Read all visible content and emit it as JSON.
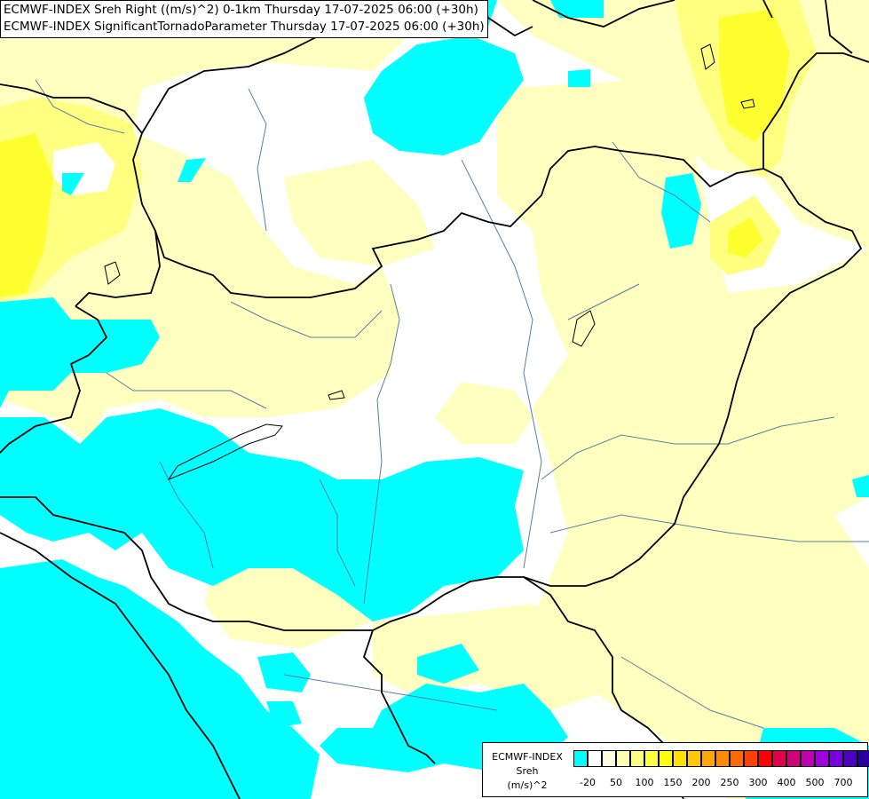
{
  "header": {
    "line1": "ECMWF-INDEX Sreh Right ((m/s)^2) 0-1km Thursday 17-07-2025 06:00 (+30h)",
    "line2": "ECMWF-INDEX SignificantTornadoParameter Thursday 17-07-2025 06:00 (+30h)"
  },
  "legend": {
    "title1": "ECMWF-INDEX",
    "title2": "Sreh",
    "title3": "(m/s)^2",
    "ticks": [
      "-20",
      "50",
      "100",
      "150",
      "200",
      "250",
      "300",
      "400",
      "500",
      "700"
    ],
    "colors": [
      "#00ffff",
      "#ffffff",
      "#ffffe0",
      "#ffffb0",
      "#ffff80",
      "#ffff40",
      "#ffff00",
      "#ffe000",
      "#ffc800",
      "#ffa800",
      "#ff8c00",
      "#ff6a00",
      "#ff4000",
      "#ff0000",
      "#e0004c",
      "#d0007a",
      "#c000b0",
      "#a000e0",
      "#7800e0",
      "#4c00c0",
      "#2800a0",
      "#000080"
    ]
  },
  "map": {
    "colors": {
      "cyan": "#00ffff",
      "pale_yellow": "#ffffc0",
      "yellow": "#ffff80",
      "bright_yellow": "#ffff20",
      "border": "#000000",
      "river": "#5a7fa0"
    }
  }
}
